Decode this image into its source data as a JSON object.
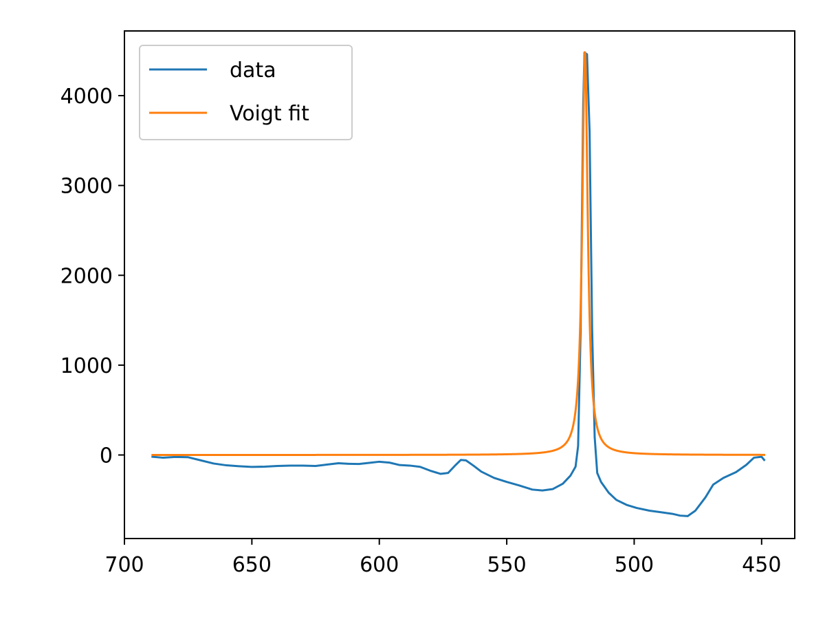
{
  "chart_data": {
    "type": "line",
    "title": "",
    "xlabel": "",
    "ylabel": "",
    "x_axis_reversed": true,
    "xlim": [
      700,
      437
    ],
    "ylim": [
      -930,
      4720
    ],
    "x_ticks": [
      "700",
      "650",
      "600",
      "550",
      "500",
      "450"
    ],
    "y_ticks": [
      "0",
      "1000",
      "2000",
      "3000",
      "4000"
    ],
    "grid": false,
    "legend_position": "top-left",
    "series": [
      {
        "name": "data",
        "color": "#1f77b4",
        "points": [
          [
            689,
            -20
          ],
          [
            685,
            -30
          ],
          [
            680,
            -22
          ],
          [
            675,
            -25
          ],
          [
            670,
            -60
          ],
          [
            665,
            -95
          ],
          [
            660,
            -115
          ],
          [
            655,
            -125
          ],
          [
            650,
            -133
          ],
          [
            645,
            -130
          ],
          [
            640,
            -122
          ],
          [
            635,
            -118
          ],
          [
            630,
            -118
          ],
          [
            625,
            -122
          ],
          [
            620,
            -105
          ],
          [
            616,
            -92
          ],
          [
            612,
            -98
          ],
          [
            608,
            -100
          ],
          [
            604,
            -88
          ],
          [
            600,
            -75
          ],
          [
            596,
            -85
          ],
          [
            592,
            -112
          ],
          [
            588,
            -118
          ],
          [
            584,
            -132
          ],
          [
            580,
            -175
          ],
          [
            576,
            -210
          ],
          [
            573,
            -200
          ],
          [
            570,
            -110
          ],
          [
            568,
            -55
          ],
          [
            566,
            -60
          ],
          [
            563,
            -120
          ],
          [
            560,
            -185
          ],
          [
            555,
            -255
          ],
          [
            550,
            -300
          ],
          [
            545,
            -340
          ],
          [
            540,
            -385
          ],
          [
            536,
            -395
          ],
          [
            532,
            -380
          ],
          [
            528,
            -320
          ],
          [
            525,
            -230
          ],
          [
            523,
            -130
          ],
          [
            522,
            100
          ],
          [
            521,
            1400
          ],
          [
            520,
            3900
          ],
          [
            519.5,
            4480
          ],
          [
            518.5,
            4460
          ],
          [
            517.5,
            3600
          ],
          [
            516.5,
            1400
          ],
          [
            515.5,
            200
          ],
          [
            514.5,
            -200
          ],
          [
            513,
            -300
          ],
          [
            510,
            -420
          ],
          [
            507,
            -500
          ],
          [
            503,
            -555
          ],
          [
            499,
            -590
          ],
          [
            494,
            -620
          ],
          [
            490,
            -635
          ],
          [
            485,
            -655
          ],
          [
            482,
            -675
          ],
          [
            479,
            -680
          ],
          [
            476,
            -620
          ],
          [
            472,
            -470
          ],
          [
            469,
            -330
          ],
          [
            465,
            -255
          ],
          [
            460,
            -190
          ],
          [
            456,
            -110
          ],
          [
            453,
            -30
          ],
          [
            450,
            -20
          ],
          [
            449,
            -55
          ]
        ]
      },
      {
        "name": "Voigt fit",
        "color": "#ff7f0e",
        "model": {
          "center": 519.3,
          "amplitude": 4490,
          "hwhm": 1.3,
          "baseline": 0
        },
        "x_range": [
          689,
          449
        ]
      }
    ]
  }
}
